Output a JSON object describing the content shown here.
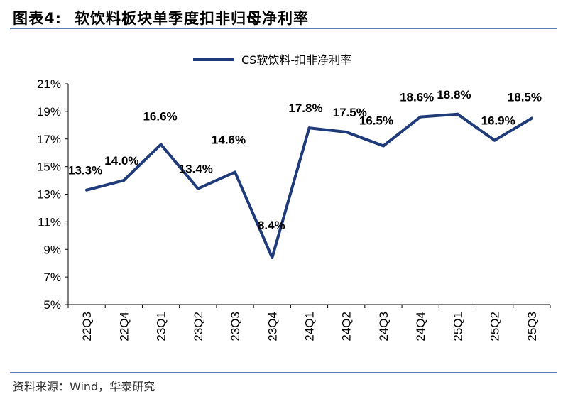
{
  "figure": {
    "number": "图表4:",
    "title": "软饮料板块单季度扣非归母净利率",
    "source": "资料来源：Wind，华泰研究"
  },
  "colors": {
    "line": "#1f3b7a",
    "rule": "#5b7fb3"
  },
  "chart_data": {
    "type": "line",
    "categories": [
      "22Q3",
      "22Q4",
      "23Q1",
      "23Q2",
      "23Q3",
      "23Q4",
      "24Q1",
      "24Q2",
      "24Q3",
      "24Q4",
      "25Q1",
      "25Q2",
      "25Q3"
    ],
    "series": [
      {
        "name": "CS软饮料-扣非净利率",
        "values": [
          13.3,
          14.0,
          16.6,
          13.4,
          14.6,
          8.4,
          17.8,
          17.5,
          16.5,
          18.6,
          18.8,
          16.9,
          18.5
        ],
        "labels": [
          "13.3%",
          "14.0%",
          "16.6%",
          "13.4%",
          "14.6%",
          "8.4%",
          "17.8%",
          "17.5%",
          "16.5%",
          "18.6%",
          "18.8%",
          "16.9%",
          "18.5%"
        ]
      }
    ],
    "ylim": [
      5,
      21
    ],
    "yticks": [
      5,
      7,
      9,
      11,
      13,
      15,
      17,
      19,
      21
    ],
    "ytick_labels": [
      "5%",
      "7%",
      "9%",
      "11%",
      "13%",
      "15%",
      "17%",
      "19%",
      "21%"
    ],
    "legend": "top-center",
    "grid": false
  }
}
